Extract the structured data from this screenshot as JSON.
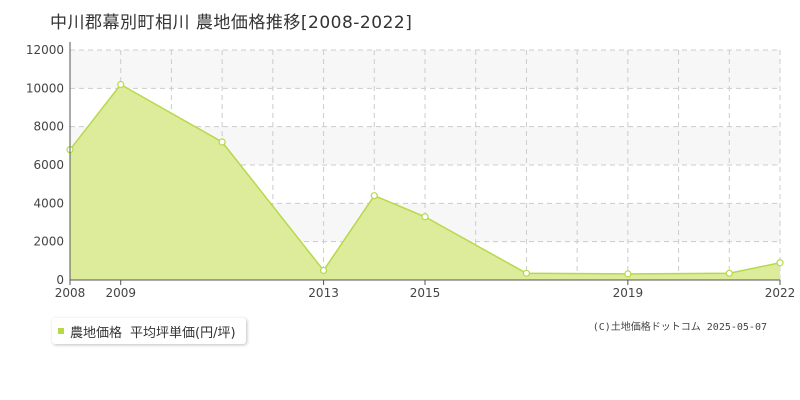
{
  "title": "中川郡幕別町相川 農地価格推移[2008-2022]",
  "legend": {
    "label": "農地価格",
    "sublabel": "平均坪単価(円/坪)"
  },
  "credit": "(C)土地価格ドットコム 2025-05-07",
  "colors": {
    "fill": "#dcec9a",
    "line": "#b5d94a",
    "marker_fill": "#ffffff",
    "grid": "#cccccc",
    "band": "#f7f7f7",
    "axis": "#555555"
  },
  "chart_data": {
    "type": "area",
    "title": "中川郡幕別町相川 農地価格推移[2008-2022]",
    "xlabel": "",
    "ylabel": "",
    "xlim": [
      2008,
      2022
    ],
    "ylim": [
      0,
      12000
    ],
    "x_ticks": [
      2008,
      2009,
      2013,
      2015,
      2019,
      2022
    ],
    "y_ticks": [
      0,
      2000,
      4000,
      6000,
      8000,
      10000,
      12000
    ],
    "grid": true,
    "legend_position": "bottom-left",
    "series": [
      {
        "name": "農地価格",
        "x": [
          2008,
          2009,
          2011,
          2013,
          2014,
          2015,
          2017,
          2019,
          2021,
          2022
        ],
        "values": [
          6800,
          10200,
          7200,
          500,
          4400,
          3300,
          350,
          320,
          350,
          900
        ]
      }
    ]
  }
}
